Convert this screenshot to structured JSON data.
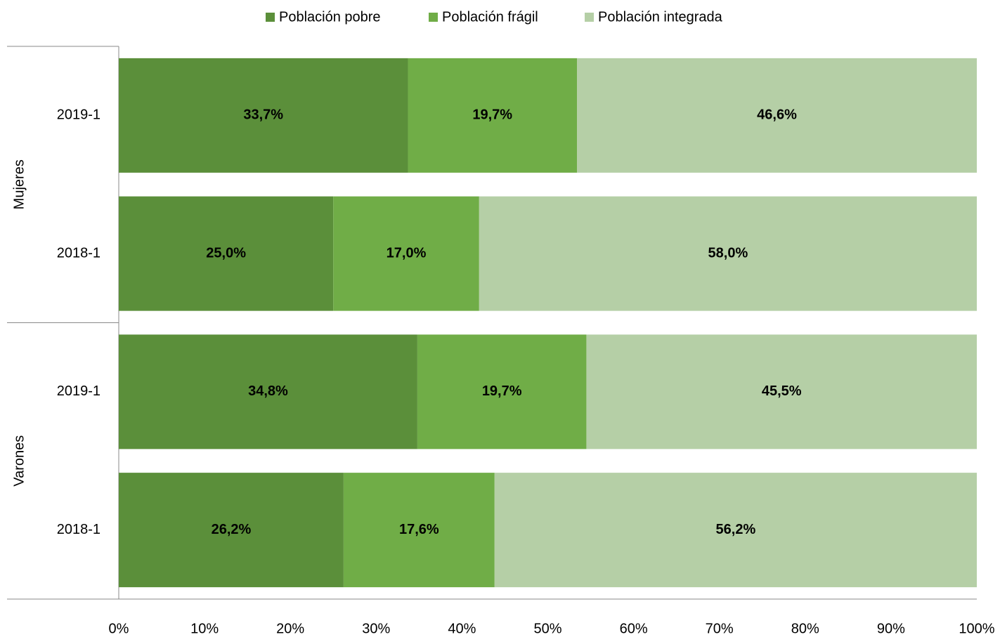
{
  "chart_data": {
    "type": "stacked-bar-horizontal",
    "categories": [
      "2019-1",
      "2018-1",
      "2019-1",
      "2018-1"
    ],
    "groups": [
      "Mujeres",
      "Varones"
    ],
    "series": [
      {
        "name": "Población pobre",
        "color": "#5b8f3a",
        "values": [
          33.7,
          25.0,
          34.8,
          26.2
        ],
        "value_labels": [
          "33,7%",
          "25,0%",
          "34,8%",
          "26,2%"
        ]
      },
      {
        "name": "Población frágil",
        "color": "#70ad47",
        "values": [
          19.7,
          17.0,
          19.7,
          17.6
        ],
        "value_labels": [
          "19,7%",
          "17,0%",
          "19,7%",
          "17,6%"
        ]
      },
      {
        "name": "Población integrada",
        "color": "#b5cfa6",
        "values": [
          46.6,
          58.0,
          45.5,
          56.2
        ],
        "value_labels": [
          "46,6%",
          "58,0%",
          "45,5%",
          "56,2%"
        ]
      }
    ],
    "xlim": [
      0,
      100
    ],
    "xticks": [
      {
        "value": 0,
        "label": "0%"
      },
      {
        "value": 10,
        "label": "10%"
      },
      {
        "value": 20,
        "label": "20%"
      },
      {
        "value": 30,
        "label": "30%"
      },
      {
        "value": 40,
        "label": "40%"
      },
      {
        "value": 50,
        "label": "50%"
      },
      {
        "value": 60,
        "label": "60%"
      },
      {
        "value": 70,
        "label": "70%"
      },
      {
        "value": 80,
        "label": "80%"
      },
      {
        "value": 90,
        "label": "90%"
      },
      {
        "value": 100,
        "label": "100%"
      }
    ],
    "legend": "top"
  }
}
